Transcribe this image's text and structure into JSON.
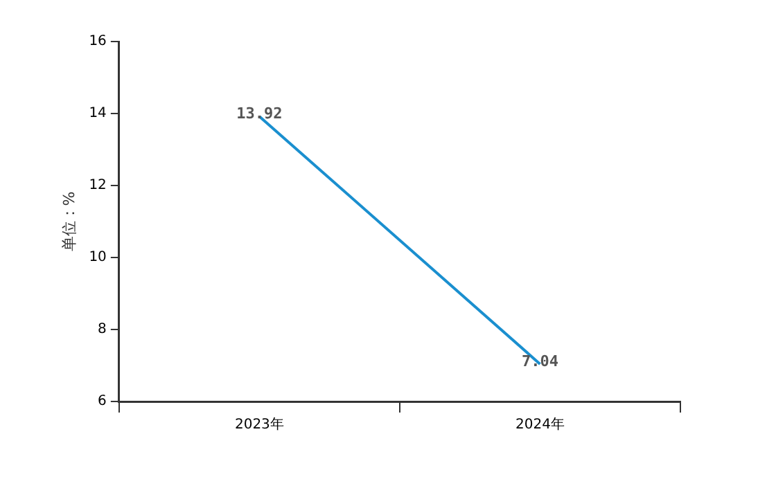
{
  "chart_data": {
    "type": "line",
    "ylabel": "单位：%",
    "categories": [
      "2023年",
      "2024年"
    ],
    "series": [
      {
        "color": "#1a8fcf",
        "values": [
          13.92,
          7.04
        ]
      }
    ],
    "ylim": [
      6,
      16
    ],
    "yticks": [
      6,
      8,
      10,
      12,
      14,
      16
    ],
    "grid": false,
    "legend": false,
    "marker": "none",
    "line_style": "solid",
    "data_labels": true
  }
}
